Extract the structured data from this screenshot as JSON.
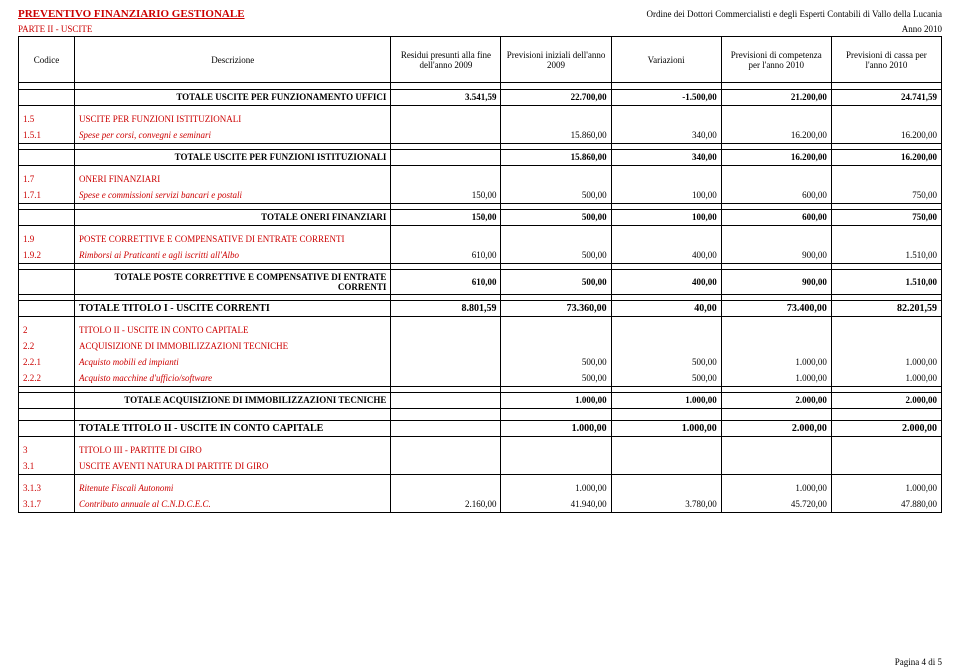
{
  "header": {
    "title": "PREVENTIVO FINANZIARIO GESTIONALE",
    "organization": "Ordine dei Dottori Commercialisti e degli Esperti Contabili di Vallo della Lucania",
    "part": "PARTE II - USCITE",
    "year": "Anno 2010"
  },
  "columns": {
    "codice": "Codice",
    "descrizione": "Descrizione",
    "c1": "Residui presunti alla fine dell'anno 2009",
    "c2": "Previsioni iniziali dell'anno 2009",
    "c3": "Variazioni",
    "c4": "Previsioni di competenza per l'anno 2010",
    "c5": "Previsioni di cassa per l'anno 2010"
  },
  "rows": {
    "tot_uffici": {
      "desc": "TOTALE USCITE PER FUNZIONAMENTO UFFICI",
      "v": [
        "3.541,59",
        "22.700,00",
        "-1.500,00",
        "21.200,00",
        "24.741,59"
      ]
    },
    "r15": {
      "cod": "1.5",
      "desc": "USCITE PER FUNZIONI ISTITUZIONALI"
    },
    "r151": {
      "cod": "1.5.1",
      "desc": "Spese per corsi, convegni e seminari",
      "v": [
        "",
        "15.860,00",
        "340,00",
        "16.200,00",
        "16.200,00"
      ]
    },
    "tot15": {
      "desc": "TOTALE USCITE PER FUNZIONI ISTITUZIONALI",
      "v": [
        "",
        "15.860,00",
        "340,00",
        "16.200,00",
        "16.200,00"
      ]
    },
    "r17": {
      "cod": "1.7",
      "desc": "ONERI FINANZIARI"
    },
    "r171": {
      "cod": "1.7.1",
      "desc": "Spese e commissioni servizi bancari e postali",
      "v": [
        "150,00",
        "500,00",
        "100,00",
        "600,00",
        "750,00"
      ]
    },
    "tot17": {
      "desc": "TOTALE ONERI FINANZIARI",
      "v": [
        "150,00",
        "500,00",
        "100,00",
        "600,00",
        "750,00"
      ]
    },
    "r19": {
      "cod": "1.9",
      "desc": "POSTE CORRETTIVE E COMPENSATIVE DI ENTRATE CORRENTI"
    },
    "r192": {
      "cod": "1.9.2",
      "desc": "Rimborsi ai Praticanti e agli iscritti all'Albo",
      "v": [
        "610,00",
        "500,00",
        "400,00",
        "900,00",
        "1.510,00"
      ]
    },
    "tot19": {
      "desc": "TOTALE POSTE CORRETTIVE E COMPENSATIVE DI ENTRATE CORRENTI",
      "v": [
        "610,00",
        "500,00",
        "400,00",
        "900,00",
        "1.510,00"
      ]
    },
    "tot_t1": {
      "desc": "TOTALE TITOLO I - USCITE CORRENTI",
      "v": [
        "8.801,59",
        "73.360,00",
        "40,00",
        "73.400,00",
        "82.201,59"
      ]
    },
    "r2": {
      "cod": "2",
      "desc": "TITOLO II - USCITE IN CONTO CAPITALE"
    },
    "r22": {
      "cod": "2.2",
      "desc": "ACQUISIZIONE DI IMMOBILIZZAZIONI TECNICHE"
    },
    "r221": {
      "cod": "2.2.1",
      "desc": "Acquisto mobili ed impianti",
      "v": [
        "",
        "500,00",
        "500,00",
        "1.000,00",
        "1.000,00"
      ]
    },
    "r222": {
      "cod": "2.2.2",
      "desc": "Acquisto macchine d'ufficio/software",
      "v": [
        "",
        "500,00",
        "500,00",
        "1.000,00",
        "1.000,00"
      ]
    },
    "tot22": {
      "desc": "TOTALE ACQUISIZIONE DI IMMOBILIZZAZIONI TECNICHE",
      "v": [
        "",
        "1.000,00",
        "1.000,00",
        "2.000,00",
        "2.000,00"
      ]
    },
    "tot_t2": {
      "desc": "TOTALE TITOLO II - USCITE IN CONTO CAPITALE",
      "v": [
        "",
        "1.000,00",
        "1.000,00",
        "2.000,00",
        "2.000,00"
      ]
    },
    "r3": {
      "cod": "3",
      "desc": "TITOLO III - PARTITE DI GIRO"
    },
    "r31": {
      "cod": "3.1",
      "desc": "USCITE AVENTI NATURA DI PARTITE DI GIRO"
    },
    "r313": {
      "cod": "3.1.3",
      "desc": "Ritenute Fiscali Autonomi",
      "v": [
        "",
        "1.000,00",
        "",
        "1.000,00",
        "1.000,00"
      ]
    },
    "r317": {
      "cod": "3.1.7",
      "desc": "Contributo annuale al C.N.D.C.E.C.",
      "v": [
        "2.160,00",
        "41.940,00",
        "3.780,00",
        "45.720,00",
        "47.880,00"
      ]
    }
  },
  "footer": {
    "page": "Pagina 4 di 5"
  }
}
